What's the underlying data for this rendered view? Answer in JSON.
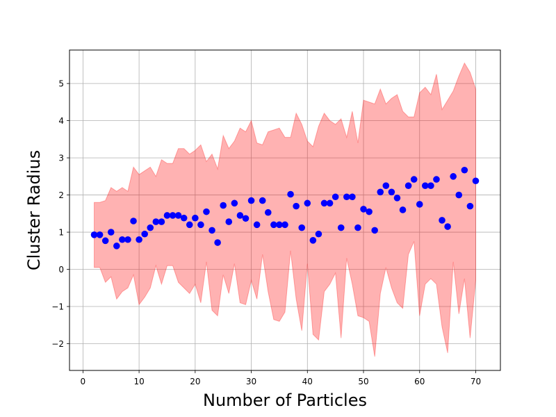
{
  "chart_data": {
    "type": "scatter",
    "xlabel": "Number of Particles",
    "ylabel": "Cluster Radius",
    "xlim": [
      -2.4,
      74.4
    ],
    "ylim": [
      -2.72,
      5.9
    ],
    "xticks": [
      0,
      10,
      20,
      30,
      40,
      50,
      60,
      70
    ],
    "yticks": [
      -2,
      -1,
      0,
      1,
      2,
      3,
      4,
      5
    ],
    "xtick_labels": [
      "0",
      "10",
      "20",
      "30",
      "40",
      "50",
      "60",
      "70"
    ],
    "ytick_labels": [
      "−2",
      "−1",
      "0",
      "1",
      "2",
      "3",
      "4",
      "5"
    ],
    "grid": true,
    "series": [
      {
        "marker_color": "#0000ff",
        "band_color": "#ff0000",
        "band_opacity": 0.3,
        "x": [
          2,
          3,
          4,
          5,
          6,
          7,
          8,
          9,
          10,
          11,
          12,
          13,
          14,
          15,
          16,
          17,
          18,
          19,
          20,
          21,
          22,
          23,
          24,
          25,
          26,
          27,
          28,
          29,
          30,
          31,
          32,
          33,
          34,
          35,
          36,
          37,
          38,
          39,
          40,
          41,
          42,
          43,
          44,
          45,
          46,
          47,
          48,
          49,
          50,
          51,
          52,
          53,
          54,
          55,
          56,
          57,
          58,
          59,
          60,
          61,
          62,
          63,
          64,
          65,
          66,
          67,
          68,
          69,
          70
        ],
        "y": [
          0.93,
          0.93,
          0.77,
          1.0,
          0.63,
          0.8,
          0.8,
          1.3,
          0.8,
          0.95,
          1.12,
          1.28,
          1.28,
          1.45,
          1.45,
          1.45,
          1.38,
          1.2,
          1.38,
          1.2,
          1.55,
          1.05,
          0.72,
          1.72,
          1.28,
          1.78,
          1.45,
          1.37,
          1.85,
          1.2,
          1.85,
          1.53,
          1.2,
          1.2,
          1.2,
          2.02,
          1.7,
          1.12,
          1.78,
          0.78,
          0.95,
          1.78,
          1.78,
          1.95,
          1.12,
          1.95,
          1.95,
          1.12,
          1.62,
          1.55,
          1.05,
          2.08,
          2.25,
          2.08,
          1.92,
          1.6,
          2.25,
          2.42,
          1.75,
          2.25,
          2.25,
          2.42,
          1.32,
          1.15,
          2.5,
          2.0,
          2.67,
          1.7,
          2.38
        ],
        "upper": [
          1.8,
          1.8,
          1.85,
          2.2,
          2.1,
          2.2,
          2.1,
          2.75,
          2.55,
          2.65,
          2.75,
          2.5,
          2.95,
          2.85,
          2.85,
          3.25,
          3.25,
          3.1,
          3.2,
          3.35,
          2.9,
          3.1,
          2.7,
          3.6,
          3.25,
          3.45,
          3.8,
          3.7,
          4.0,
          3.4,
          3.35,
          3.7,
          3.75,
          3.8,
          3.55,
          3.55,
          4.2,
          3.9,
          3.45,
          3.3,
          3.85,
          4.2,
          4.0,
          3.9,
          4.05,
          3.55,
          4.25,
          3.4,
          4.55,
          4.5,
          4.45,
          4.85,
          4.45,
          4.6,
          4.7,
          4.25,
          4.1,
          4.1,
          4.75,
          4.9,
          4.7,
          5.25,
          4.3,
          4.55,
          4.8,
          5.2,
          5.55,
          5.3,
          4.85
        ],
        "lower": [
          0.05,
          0.05,
          -0.35,
          -0.2,
          -0.8,
          -0.6,
          -0.5,
          -0.15,
          -0.95,
          -0.75,
          -0.5,
          0.1,
          -0.4,
          0.1,
          0.1,
          -0.35,
          -0.5,
          -0.65,
          -0.4,
          -0.9,
          0.2,
          -1.1,
          -1.25,
          -0.15,
          -0.65,
          0.15,
          -0.9,
          -0.95,
          -0.3,
          -0.8,
          0.4,
          -0.6,
          -1.35,
          -1.4,
          -1.15,
          0.5,
          -0.8,
          -1.65,
          0.15,
          -1.75,
          -1.9,
          -0.6,
          -0.4,
          -0.1,
          -1.85,
          0.3,
          -0.4,
          -1.25,
          -1.3,
          -1.4,
          -2.35,
          -0.65,
          0.05,
          -0.5,
          -0.9,
          -1.05,
          0.4,
          0.75,
          -1.25,
          -0.4,
          -0.25,
          -0.4,
          -1.55,
          -2.25,
          0.2,
          -1.2,
          -0.25,
          -1.85,
          -0.3
        ]
      }
    ]
  }
}
